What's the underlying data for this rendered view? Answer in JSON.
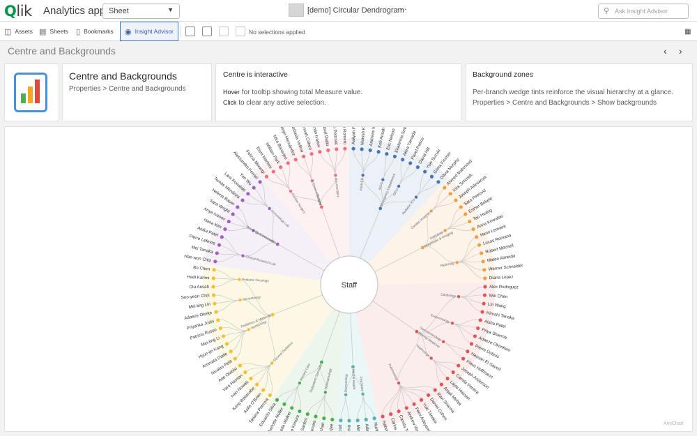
{
  "header": {
    "logo_text": "lik",
    "logo_q": "Q",
    "app_title": "Analytics app",
    "sheet_selector": "Sheet",
    "sheet_name": "[demo] Circular Dendrogram",
    "more_menu": "···",
    "ask_placeholder": "Ask Insight Advisor"
  },
  "toolbar": {
    "assets": "Assets",
    "sheets": "Sheets",
    "bookmarks": "Bookmarks",
    "insight_advisor": "Insight Advisor",
    "no_selections": "No selections applied"
  },
  "sheet": {
    "title": "Centre and Backgrounds",
    "prev": "‹",
    "next": "›"
  },
  "cards": {
    "title_card": {
      "title": "Centre and Backgrounds",
      "subtitle": "Properties > Centre and Backgrounds"
    },
    "centre_card": {
      "heading": "Centre is interactive",
      "line1_key": "Hover",
      "line1_rest": " for tooltip showing total Measure value.",
      "line2_key": "Click",
      "line2_rest": " to clear any active selection."
    },
    "zones_card": {
      "heading": "Background zones",
      "line1": "Per-branch wedge tints reinforce the visual hierarchy at a glance.",
      "line2": "Properties > Centre and Backgrounds > Show backgrounds"
    }
  },
  "chart_data": {
    "type": "dendrogram",
    "center_label": "Staff",
    "watermark": "AnyChart",
    "groups": [
      {
        "name": "Emergency Department",
        "color": "#4a76b8",
        "tint": "#e9eef6",
        "subs": [
          {
            "name": "Adult ED",
            "leaves": [
              "Aaliyah Patel",
              "Manish Kumar",
              "Andreas Wagner",
              "Kofi Ansah"
            ]
          },
          {
            "name": "NICU",
            "leaves": [
              "Eric Nelson",
              "Ekaterina Smirnov"
            ]
          },
          {
            "name": "SICU",
            "leaves": [
              "Akira Yamada",
              "Pavel Petrov",
              "David Hill"
            ]
          },
          {
            "name": "Pediatric ICU",
            "leaves": [
              "Yuki Suzuki",
              "Greta Fischer",
              "Olivia Murphy"
            ]
          }
        ]
      },
      {
        "name": "Diagnostic & Imaging",
        "color": "#f0a040",
        "tint": "#fdf1e4",
        "subs": [
          {
            "name": "Cardiac Imaging",
            "leaves": [
              "Ahmed Mahmoud",
              "Kira Schmidt",
              "Joseph Adesanya"
            ]
          },
          {
            "name": "Pathology",
            "leaves": [
              "Sara Petrović",
              "Esther Bekele",
              "Tao Huang",
              "Anna Kowalski"
            ]
          },
          {
            "name": "Radiology",
            "leaves": [
              "Henri Lemaire",
              "Lucas Romano",
              "Robert Mitchell",
              "Mateo Almeida",
              "Werner Schneider",
              "Diana López"
            ]
          }
        ]
      },
      {
        "name": "Internal Medicine",
        "color": "#e05555",
        "tint": "#fbeaea",
        "subs": [
          {
            "name": "Cardiology",
            "leaves": [
              "Alex Rodriguez",
              "Wei Chen",
              "Lin Wang",
              "Hiroshi Tanaka"
            ]
          },
          {
            "name": "Endocrinology",
            "leaves": [
              "Aisha Patel",
              "Priya Sharma",
              "Adaeze Okonkwo",
              "Pierre Dubois"
            ]
          },
          {
            "name": "Gastroenterology",
            "leaves": [
              "Hassan El-Sayed",
              "Klaus Hoffmann"
            ]
          },
          {
            "name": "Nephrology",
            "leaves": [
              "Joseph Anderson",
              "Camila Pereira",
              "Layla Hassan",
              "Anjali Mehta"
            ]
          },
          {
            "name": "Pulmonology",
            "leaves": [
              "Ravi Sharma",
              "Daniel Cohen",
              "Yuki Tanaka",
              "Femi Adeyemi",
              "Andrew Walker",
              "Camila Torres",
              "Carlos Mendoza",
              "Isabella Rossi"
            ]
          }
        ]
      },
      {
        "name": "Mental Health",
        "color": "#5ab0b0",
        "tint": "#e8f4f4",
        "subs": [
          {
            "name": "Psychiatry",
            "leaves": [
              "Nurit Cohen",
              "Adaeze Ogbu",
              "Min-young Choi"
            ]
          },
          {
            "name": "Dermatology",
            "leaves": [
              "Devi Sharma",
              "Karim Mahmoud"
            ]
          }
        ]
      },
      {
        "name": "Outpatient Specialty",
        "color": "#4caf50",
        "tint": "#eaf5ea",
        "subs": [
          {
            "name": "Ophthalmology",
            "leaves": [
              "Riya Mukherjee",
              "Rashid Khan",
              "Yuki Nakamura",
              "Antonio Santos"
            ]
          },
          {
            "name": "Primary Care",
            "leaves": [
              "Yamato Kimura",
              "Isabella Walker",
              "Charlotte Müller",
              "Eduardo Silva"
            ]
          }
        ]
      },
      {
        "name": "Pediatrics & Maternal",
        "color": "#f5c030",
        "tint": "#fdf7e0",
        "subs": [
          {
            "name": "General Pediatrics",
            "leaves": [
              "Tatiana Petrova",
              "Aoife O'Brien",
              "Kenji Watanabe",
              "Ivan Nowak",
              "Yara Hassan",
              "Ade Olabisi"
            ]
          },
          {
            "name": "Gynecology",
            "leaves": [
              "Nicolas Petit",
              "Aminata Diallo",
              "Hyun-jin Kang",
              "Mei-ling Li",
              "Patricia Russo",
              "Priyanka Joshi"
            ]
          },
          {
            "name": "Neonatology",
            "leaves": [
              "Adaeze Okeke",
              "Mei-ling Lin",
              "Soo-yeon Choi"
            ]
          },
          {
            "name": "Pediatric Oncology",
            "leaves": [
              "Olu Ansah",
              "Hadi Karimi",
              "Bo Chen"
            ]
          }
        ]
      },
      {
        "name": "Oncology & Innovation",
        "color": "#a060c0",
        "tint": "#f3ecf7",
        "subs": [
          {
            "name": "Clinical Research Lab",
            "leaves": [
              "Hae-won Choi",
              "Mei Tanaka",
              "Pierre Lefevre",
              "Anika Patel"
            ]
          },
          {
            "name": "Genomics Lab",
            "leaves": [
              "Hana Kim",
              "Anya Ivanov",
              "Sara Wright",
              "Helena Bauer"
            ]
          },
          {
            "name": "Immunology Lab",
            "leaves": [
              "Tomás Mendoza",
              "Lara Kowalski",
              "Yan Wu",
              "Alessandro Ferrari"
            ]
          }
        ]
      },
      {
        "name": "Surgery",
        "color": "#f07080",
        "tint": "#fdeef0",
        "subs": [
          {
            "name": "Cardiac Surgery",
            "leaves": [
              "Felicia Mwangi",
              "Eleni Markou",
              "William Park",
              "Mira Banerjee"
            ]
          },
          {
            "name": "General Surgery",
            "leaves": [
              "Diego Hernández",
              "Anastasia Volkov",
              "Hannah Cohen"
            ]
          },
          {
            "name": "Neurosurgery",
            "leaves": [
              "Konstantin Ivanov",
              "Olusoji Diallo",
              "Niko Petrović",
              "Antonio Romero"
            ]
          }
        ]
      }
    ]
  }
}
